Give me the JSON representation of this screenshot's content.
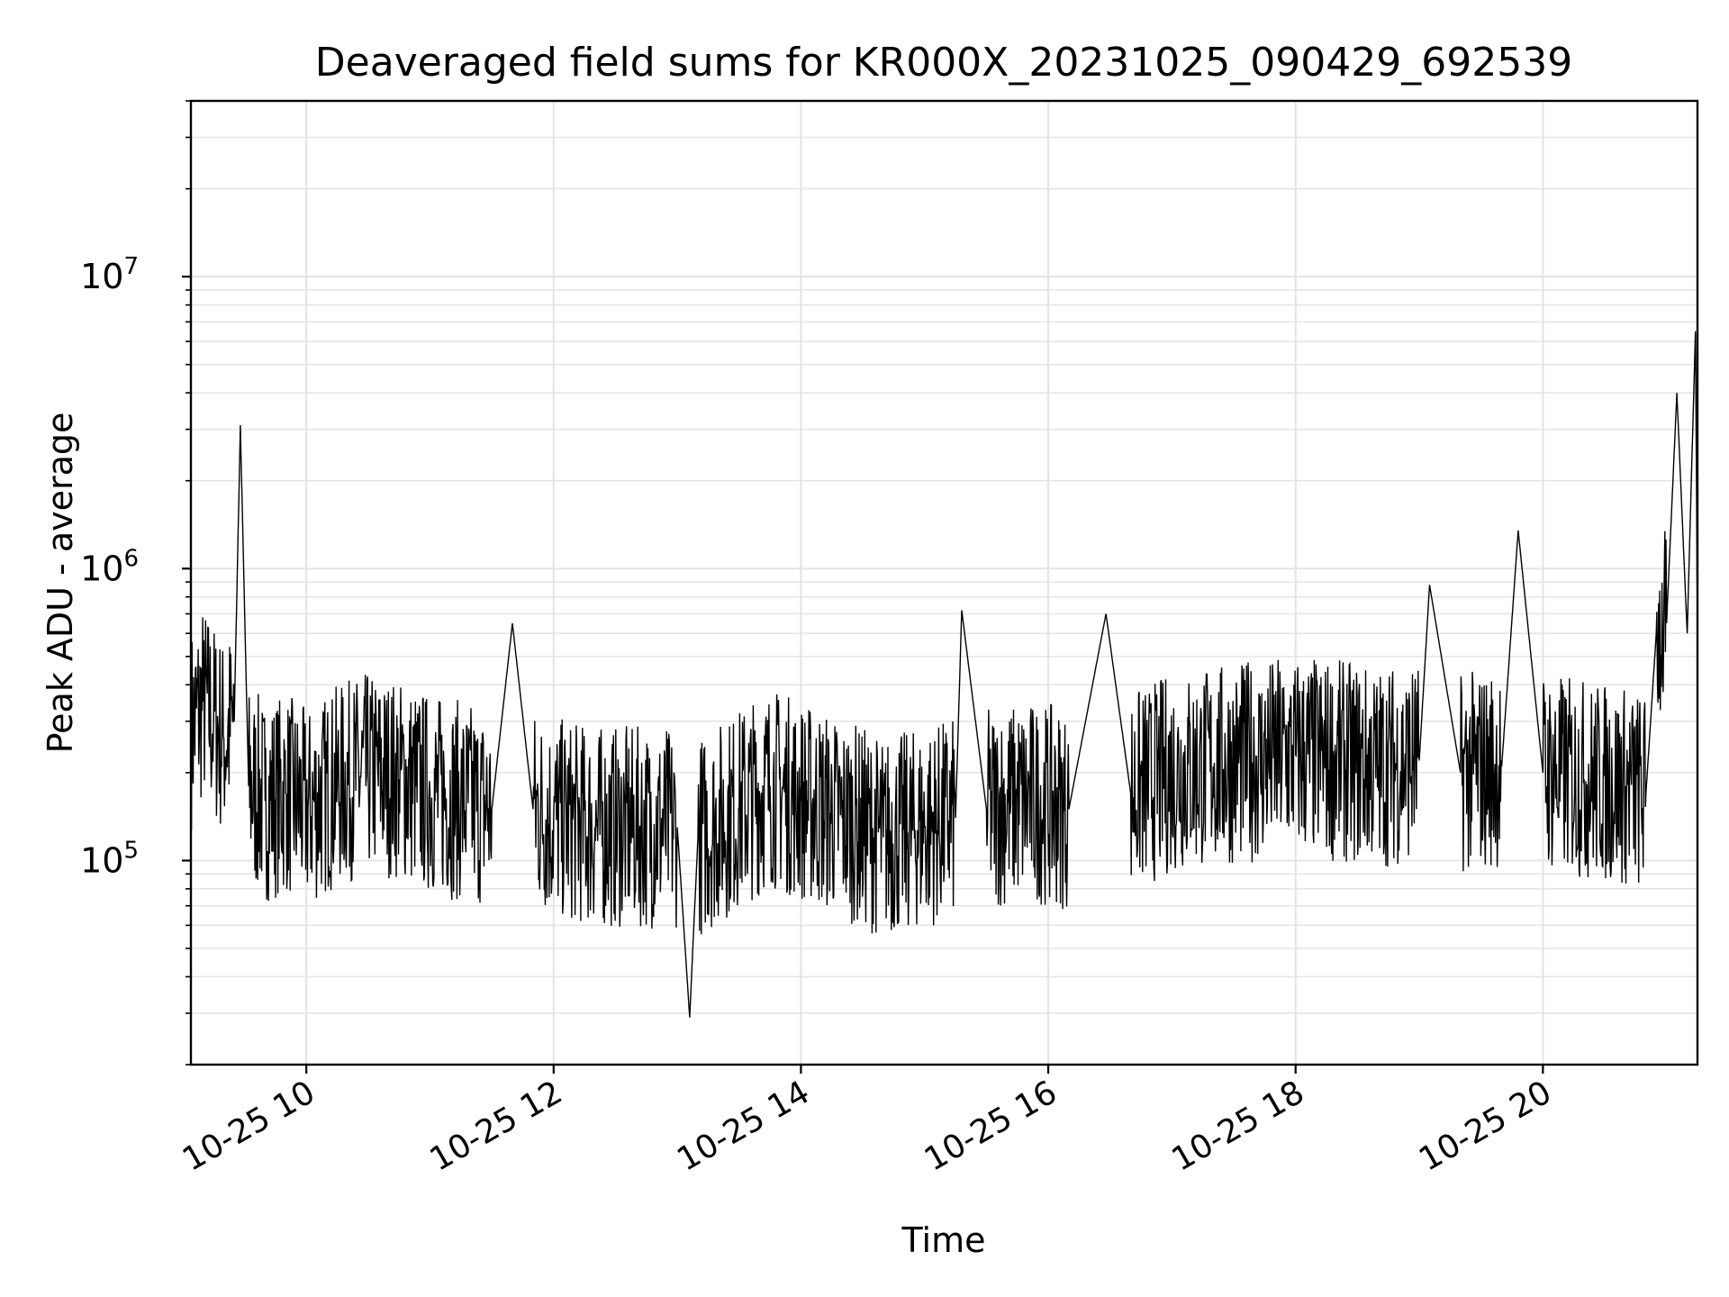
{
  "chart_data": {
    "type": "line",
    "title": "Deaveraged field sums for KR000X_20231025_090429_692539",
    "xlabel": "Time",
    "ylabel": "Peak ADU - average",
    "yscale": "log",
    "xlim": [
      "2023-10-25 09:04",
      "2023-10-25 21:15"
    ],
    "ylim": [
      20000,
      40000000
    ],
    "grid": true,
    "line_color": "#000000",
    "grid_color": "#e5e5e5",
    "x_ticks": [
      {
        "value": "2023-10-25 10:00",
        "label": "10-25 10"
      },
      {
        "value": "2023-10-25 12:00",
        "label": "10-25 12"
      },
      {
        "value": "2023-10-25 14:00",
        "label": "10-25 14"
      },
      {
        "value": "2023-10-25 16:00",
        "label": "10-25 16"
      },
      {
        "value": "2023-10-25 18:00",
        "label": "10-25 18"
      },
      {
        "value": "2023-10-25 20:00",
        "label": "10-25 20"
      }
    ],
    "y_ticks": [
      {
        "value": 100000,
        "base": "10",
        "exp": "5"
      },
      {
        "value": 1000000,
        "base": "10",
        "exp": "6"
      },
      {
        "value": 10000000,
        "base": "10",
        "exp": "7"
      }
    ],
    "series": [
      {
        "points": [
          [
            "2023-10-25 09:04",
            280000
          ],
          [
            "2023-10-25 09:10",
            350000
          ],
          [
            "2023-10-25 09:15",
            300000
          ],
          [
            "2023-10-25 09:20",
            260000
          ],
          [
            "2023-10-25 09:25",
            300000
          ],
          [
            "2023-10-25 09:28",
            3100000
          ],
          [
            "2023-10-25 09:32",
            180000
          ],
          [
            "2023-10-25 09:40",
            160000
          ],
          [
            "2023-10-25 09:50",
            170000
          ],
          [
            "2023-10-25 10:00",
            150000
          ],
          [
            "2023-10-25 10:15",
            180000
          ],
          [
            "2023-10-25 10:30",
            200000
          ],
          [
            "2023-10-25 10:45",
            190000
          ],
          [
            "2023-10-25 11:00",
            170000
          ],
          [
            "2023-10-25 11:15",
            160000
          ],
          [
            "2023-10-25 11:30",
            150000
          ],
          [
            "2023-10-25 11:40",
            650000
          ],
          [
            "2023-10-25 11:50",
            150000
          ],
          [
            "2023-10-25 12:00",
            140000
          ],
          [
            "2023-10-25 12:20",
            130000
          ],
          [
            "2023-10-25 12:40",
            130000
          ],
          [
            "2023-10-25 13:00",
            130000
          ],
          [
            "2023-10-25 13:06",
            29000
          ],
          [
            "2023-10-25 13:10",
            120000
          ],
          [
            "2023-10-25 13:30",
            150000
          ],
          [
            "2023-10-25 13:45",
            180000
          ],
          [
            "2023-10-25 14:00",
            160000
          ],
          [
            "2023-10-25 14:20",
            140000
          ],
          [
            "2023-10-25 14:40",
            120000
          ],
          [
            "2023-10-25 15:00",
            130000
          ],
          [
            "2023-10-25 15:15",
            140000
          ],
          [
            "2023-10-25 15:18",
            720000
          ],
          [
            "2023-10-25 15:30",
            150000
          ],
          [
            "2023-10-25 15:50",
            160000
          ],
          [
            "2023-10-25 16:10",
            150000
          ],
          [
            "2023-10-25 16:28",
            700000
          ],
          [
            "2023-10-25 16:40",
            170000
          ],
          [
            "2023-10-25 17:00",
            200000
          ],
          [
            "2023-10-25 17:20",
            210000
          ],
          [
            "2023-10-25 17:40",
            220000
          ],
          [
            "2023-10-25 18:00",
            230000
          ],
          [
            "2023-10-25 18:20",
            220000
          ],
          [
            "2023-10-25 18:40",
            210000
          ],
          [
            "2023-10-25 19:00",
            220000
          ],
          [
            "2023-10-25 19:05",
            880000
          ],
          [
            "2023-10-25 19:20",
            200000
          ],
          [
            "2023-10-25 19:40",
            210000
          ],
          [
            "2023-10-25 19:48",
            1350000
          ],
          [
            "2023-10-25 20:00",
            200000
          ],
          [
            "2023-10-25 20:20",
            190000
          ],
          [
            "2023-10-25 20:40",
            180000
          ],
          [
            "2023-10-25 20:50",
            170000
          ],
          [
            "2023-10-25 20:55",
            600000
          ],
          [
            "2023-10-25 21:00",
            650000
          ],
          [
            "2023-10-25 21:05",
            4000000
          ],
          [
            "2023-10-25 21:10",
            600000
          ],
          [
            "2023-10-25 21:14",
            6500000
          ],
          [
            "2023-10-25 21:15",
            600000
          ]
        ]
      }
    ]
  }
}
